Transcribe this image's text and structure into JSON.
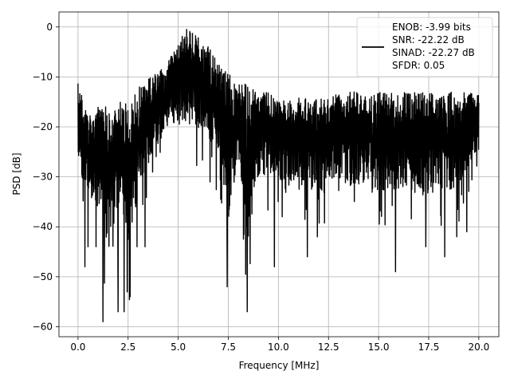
{
  "chart_data": {
    "type": "line",
    "title": "",
    "xlabel": "Frequency [MHz]",
    "ylabel": "PSD [dB]",
    "xlim": [
      -0.95,
      21.0
    ],
    "ylim": [
      -62,
      3
    ],
    "grid": true,
    "legend_position": "top-right",
    "line_color": "#000000",
    "x_ticks": [
      0.0,
      2.5,
      5.0,
      7.5,
      10.0,
      12.5,
      15.0,
      17.5,
      20.0
    ],
    "x_tick_labels": [
      "0.0",
      "2.5",
      "5.0",
      "7.5",
      "10.0",
      "12.5",
      "15.0",
      "17.5",
      "20.0"
    ],
    "y_ticks": [
      0,
      -10,
      -20,
      -30,
      -40,
      -50,
      -60
    ],
    "y_tick_labels": [
      "0",
      "−10",
      "−20",
      "−30",
      "−40",
      "−50",
      "−60"
    ],
    "legend_lines": [
      "ENOB: -3.99 bits",
      "SNR: -22.22 dB",
      "SINAD: -22.27 dB",
      "SFDR: 0.05"
    ],
    "series": [
      {
        "x": [
          0.0,
          0.5,
          1.0,
          1.5,
          2.0,
          2.5,
          3.0,
          3.5,
          4.0,
          4.5,
          5.0,
          5.5,
          6.0,
          6.5,
          7.0,
          7.5,
          8.0,
          8.5,
          9.0,
          9.5,
          10.0,
          10.5,
          11.0,
          11.5,
          12.0,
          12.5,
          13.0,
          13.5,
          14.0,
          14.5,
          15.0,
          15.5,
          16.0,
          16.5,
          17.0,
          17.5,
          18.0,
          18.5,
          19.0,
          19.5,
          20.0
        ],
        "upper": [
          -11,
          -18,
          -16,
          -16,
          -15,
          -15,
          -12,
          -10,
          -9,
          -7,
          -3,
          0,
          -2,
          -4,
          -7,
          -9,
          -11,
          -11,
          -13,
          -13,
          -15,
          -14,
          -14,
          -14,
          -14,
          -14,
          -13,
          -13,
          -13,
          -14,
          -13,
          -13,
          -13,
          -13,
          -13,
          -13,
          -14,
          -13,
          -13,
          -13,
          -13
        ],
        "lower": [
          -36,
          -40,
          -45,
          -58,
          -45,
          -57,
          -43,
          -35,
          -30,
          -25,
          -27,
          -27,
          -28,
          -32,
          -33,
          -52,
          -33,
          -57,
          -37,
          -37,
          -38,
          -40,
          -40,
          -38,
          -43,
          -38,
          -38,
          -40,
          -40,
          -38,
          -49,
          -40,
          -42,
          -40,
          -45,
          -42,
          -40,
          -42,
          -40,
          -34,
          -30
        ]
      }
    ],
    "spikes": [
      {
        "x": 0.35,
        "y": -48
      },
      {
        "x": 0.5,
        "y": -44
      },
      {
        "x": 0.9,
        "y": -44
      },
      {
        "x": 1.25,
        "y": -59
      },
      {
        "x": 2.0,
        "y": -57
      },
      {
        "x": 2.3,
        "y": -57
      },
      {
        "x": 2.6,
        "y": -54
      },
      {
        "x": 2.95,
        "y": -44
      },
      {
        "x": 3.35,
        "y": -44
      },
      {
        "x": 7.45,
        "y": -52
      },
      {
        "x": 8.45,
        "y": -57
      },
      {
        "x": 9.8,
        "y": -48
      },
      {
        "x": 11.45,
        "y": -46
      },
      {
        "x": 15.85,
        "y": -49
      },
      {
        "x": 17.35,
        "y": -44
      },
      {
        "x": 18.3,
        "y": -46
      },
      {
        "x": 18.9,
        "y": -42
      },
      {
        "x": 19.4,
        "y": -41
      }
    ]
  }
}
